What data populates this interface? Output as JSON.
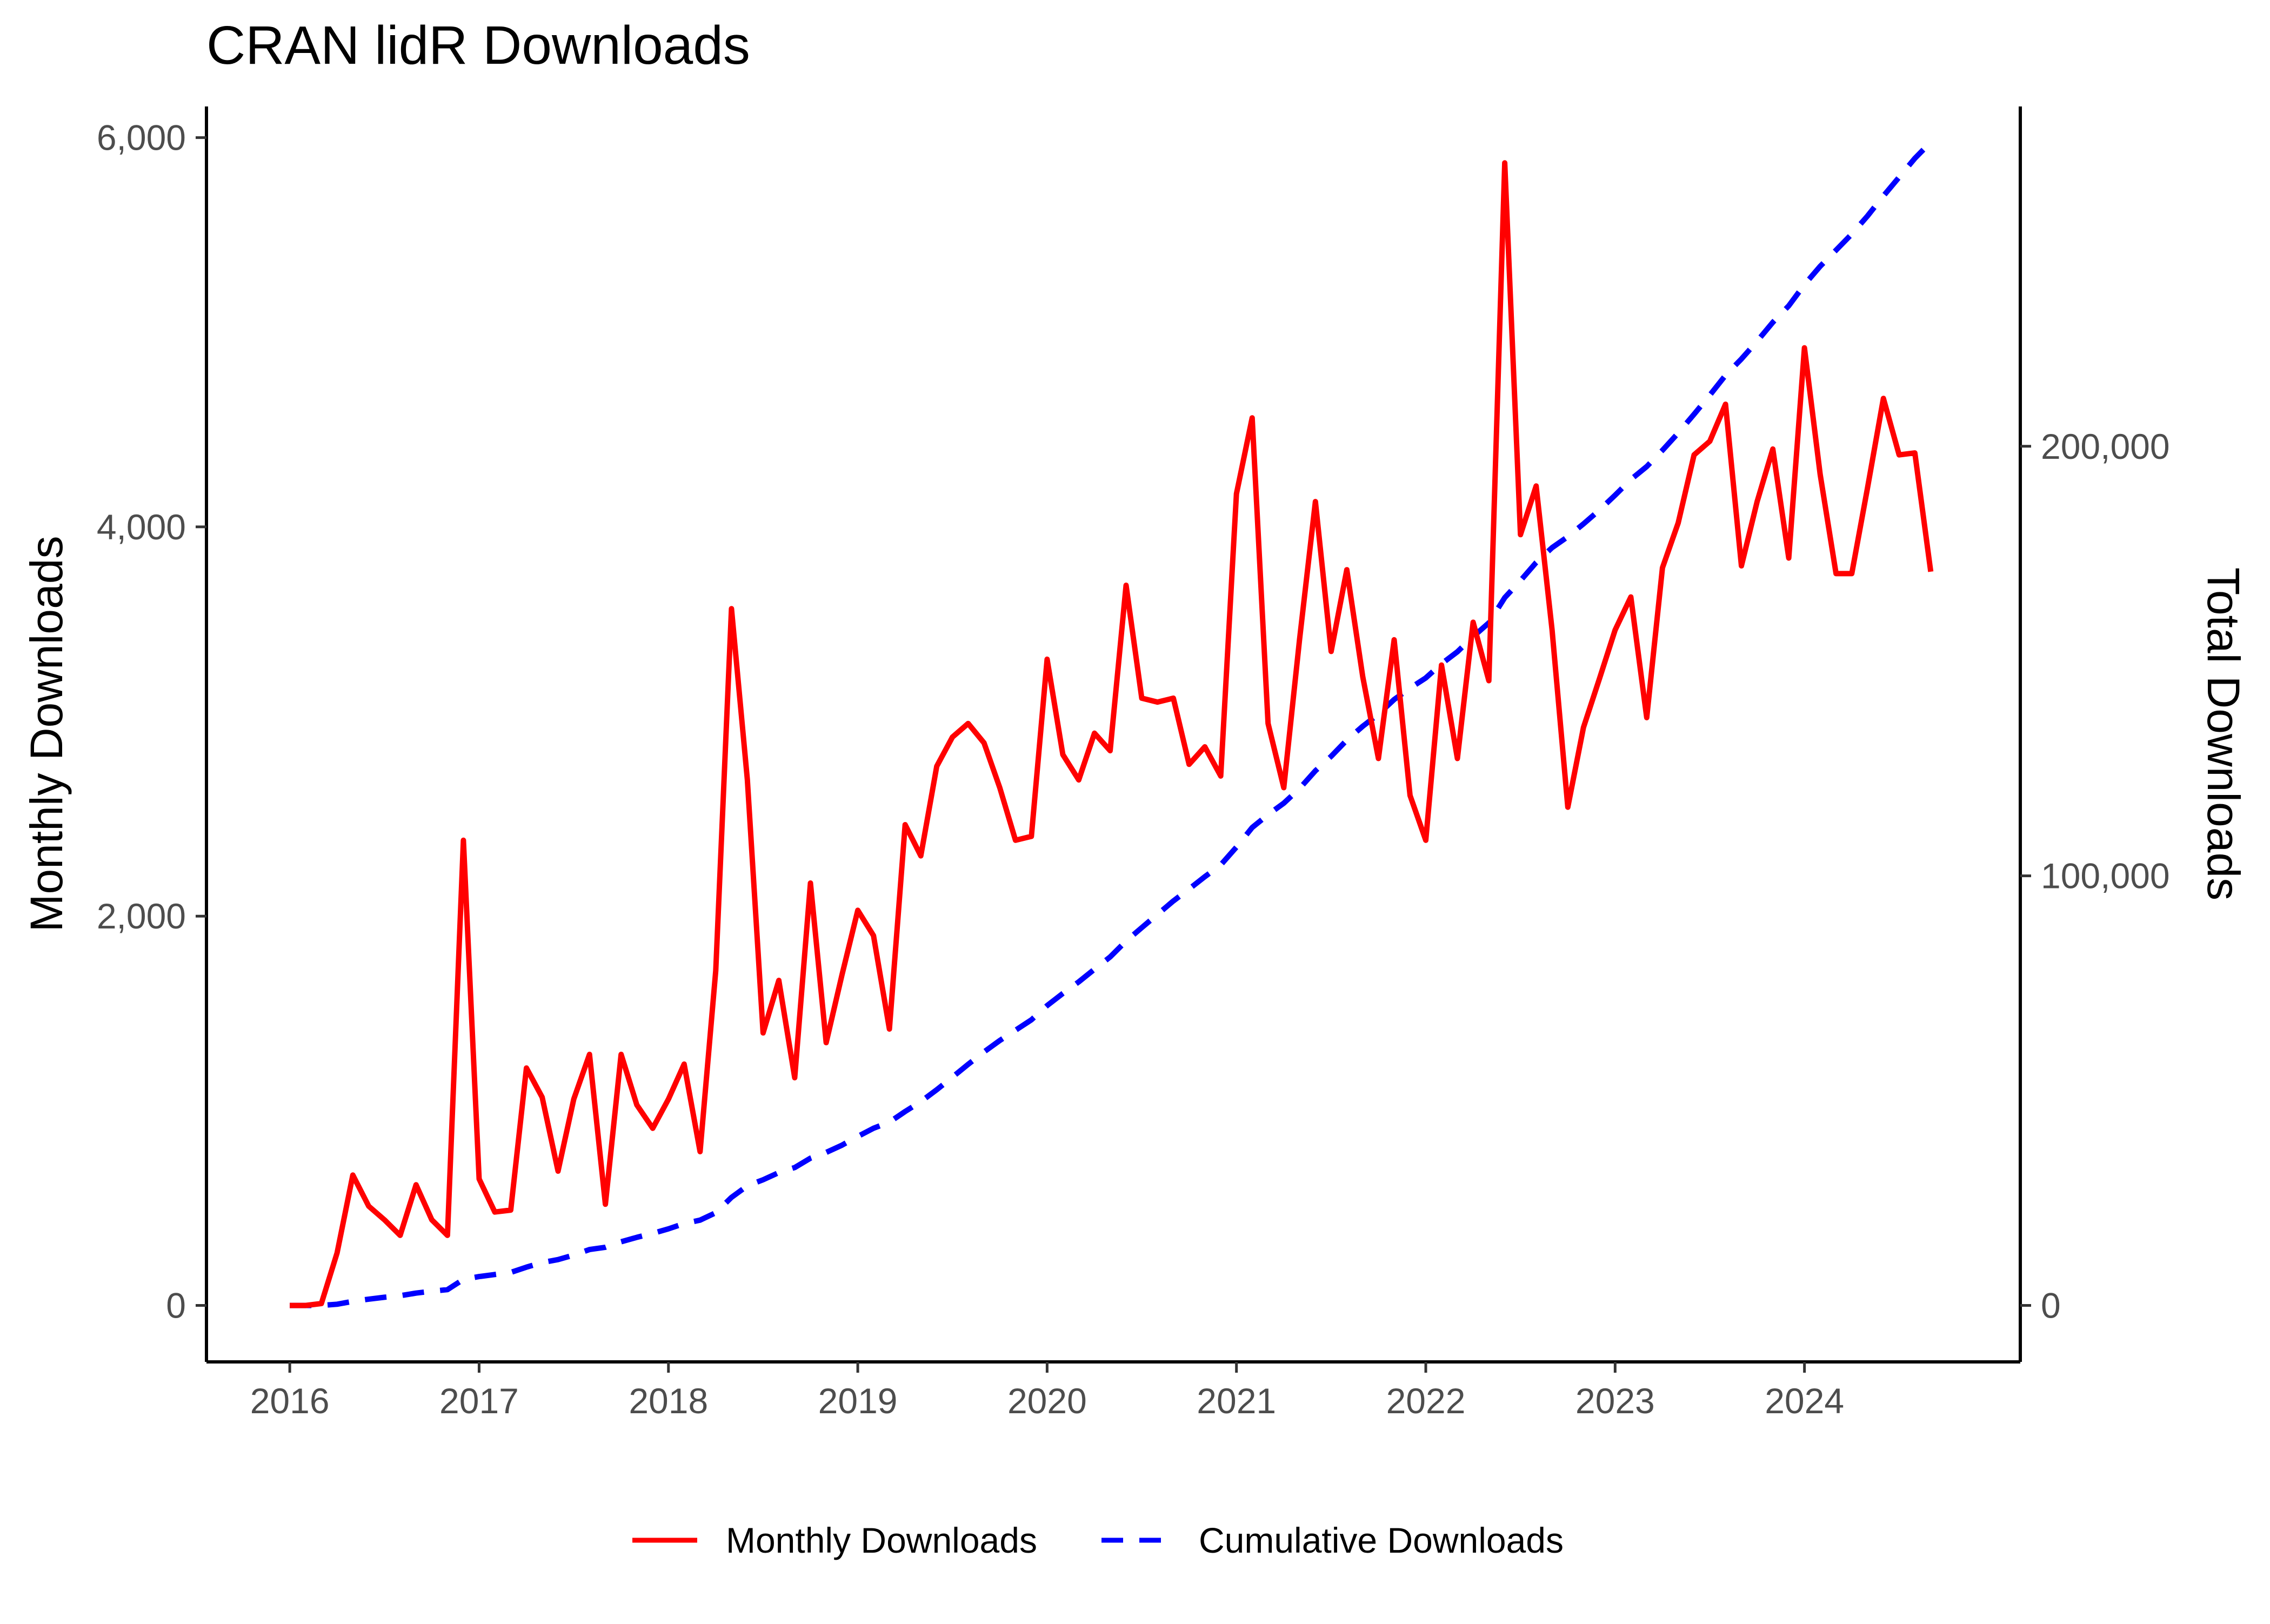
{
  "chart_data": {
    "type": "line",
    "title": "CRAN lidR Downloads",
    "xlabel": "",
    "ylabel": "Monthly Downloads",
    "ylabel_right": "Total Downloads",
    "xlim": [
      2015.56,
      2025.14
    ],
    "ylim": [
      -290,
      6160
    ],
    "ylim_right": [
      -13140,
      279100
    ],
    "x_ticks": [
      2016,
      2017,
      2018,
      2019,
      2020,
      2021,
      2022,
      2023,
      2024
    ],
    "x_tick_labels": [
      "2016",
      "2017",
      "2018",
      "2019",
      "2020",
      "2021",
      "2022",
      "2023",
      "2024"
    ],
    "y_ticks": [
      0,
      2000,
      4000,
      6000
    ],
    "y_tick_labels": [
      "0",
      "2,000",
      "4,000",
      "6,000"
    ],
    "y_right_ticks": [
      0,
      100000,
      200000
    ],
    "y_right_tick_labels": [
      "0",
      "100,000",
      "200,000"
    ],
    "grid": false,
    "legend_position": "bottom",
    "x": [
      2016.0,
      2016.083,
      2016.167,
      2016.25,
      2016.333,
      2016.417,
      2016.5,
      2016.583,
      2016.667,
      2016.75,
      2016.833,
      2016.917,
      2017.0,
      2017.083,
      2017.167,
      2017.25,
      2017.333,
      2017.417,
      2017.5,
      2017.583,
      2017.667,
      2017.75,
      2017.833,
      2017.917,
      2018.0,
      2018.083,
      2018.167,
      2018.25,
      2018.333,
      2018.417,
      2018.5,
      2018.583,
      2018.667,
      2018.75,
      2018.833,
      2018.917,
      2019.0,
      2019.083,
      2019.167,
      2019.25,
      2019.333,
      2019.417,
      2019.5,
      2019.583,
      2019.667,
      2019.75,
      2019.833,
      2019.917,
      2020.0,
      2020.083,
      2020.167,
      2020.25,
      2020.333,
      2020.417,
      2020.5,
      2020.583,
      2020.667,
      2020.75,
      2020.833,
      2020.917,
      2021.0,
      2021.083,
      2021.167,
      2021.25,
      2021.333,
      2021.417,
      2021.5,
      2021.583,
      2021.667,
      2021.75,
      2021.833,
      2021.917,
      2022.0,
      2022.083,
      2022.167,
      2022.25,
      2022.333,
      2022.417,
      2022.5,
      2022.583,
      2022.667,
      2022.75,
      2022.833,
      2022.917,
      2023.0,
      2023.083,
      2023.167,
      2023.25,
      2023.333,
      2023.417,
      2023.5,
      2023.583,
      2023.667,
      2023.75,
      2023.833,
      2023.917,
      2024.0,
      2024.083,
      2024.167,
      2024.25,
      2024.333,
      2024.417,
      2024.5,
      2024.583,
      2024.667
    ],
    "series": [
      {
        "name": "Monthly Downloads",
        "color": "#ff0000",
        "line_style": "solid",
        "axis": "left",
        "values": [
          0,
          0,
          10,
          270,
          670,
          510,
          440,
          360,
          620,
          440,
          360,
          2390,
          650,
          480,
          490,
          1220,
          1070,
          690,
          1060,
          1290,
          520,
          1290,
          1030,
          910,
          1060,
          1240,
          790,
          1720,
          3580,
          2700,
          1400,
          1670,
          1170,
          2170,
          1350,
          1700,
          2030,
          1900,
          1420,
          2470,
          2310,
          2770,
          2920,
          2990,
          2890,
          2660,
          2390,
          2410,
          3320,
          2830,
          2700,
          2940,
          2850,
          3700,
          3120,
          3100,
          3120,
          2780,
          2870,
          2720,
          4170,
          4560,
          2990,
          2660,
          3420,
          4130,
          3360,
          3780,
          3230,
          2810,
          3420,
          2620,
          2390,
          3290,
          2810,
          3510,
          3210,
          5870,
          3960,
          4210,
          3470,
          2560,
          2970,
          3220,
          3470,
          3640,
          3020,
          3790,
          4020,
          4370,
          4440,
          4630,
          3800,
          4130,
          4400,
          3840,
          4920,
          4270,
          3760,
          3760,
          4200,
          4660,
          4370,
          4380,
          3770
        ]
      },
      {
        "name": "Cumulative Downloads",
        "color": "#0000ff",
        "line_style": "dashed",
        "axis": "right",
        "values": [
          0,
          0,
          10,
          280,
          950,
          1460,
          1900,
          2260,
          2880,
          3320,
          3680,
          6070,
          6720,
          7200,
          7690,
          8910,
          9980,
          10670,
          11730,
          13020,
          13540,
          14830,
          15860,
          16770,
          17830,
          19070,
          19860,
          21580,
          25160,
          27860,
          29260,
          30930,
          32100,
          34270,
          35620,
          37320,
          39350,
          41250,
          42670,
          45140,
          47450,
          50220,
          53140,
          56130,
          59020,
          61680,
          64070,
          66480,
          69800,
          72630,
          75330,
          78270,
          81120,
          84820,
          87940,
          91040,
          94160,
          96940,
          99810,
          102530,
          106700,
          111260,
          114250,
          116910,
          120330,
          124460,
          127820,
          131600,
          134830,
          137640,
          141060,
          143680,
          146070,
          149360,
          152170,
          155680,
          158890,
          164760,
          168720,
          172930,
          176400,
          178960,
          181930,
          185150,
          188620,
          192260,
          195280,
          199070,
          203090,
          207460,
          211900,
          216530,
          220330,
          224460,
          228860,
          232700,
          237620,
          241890,
          245650,
          249410,
          253610,
          258270,
          262640,
          267020,
          270790
        ]
      }
    ]
  }
}
